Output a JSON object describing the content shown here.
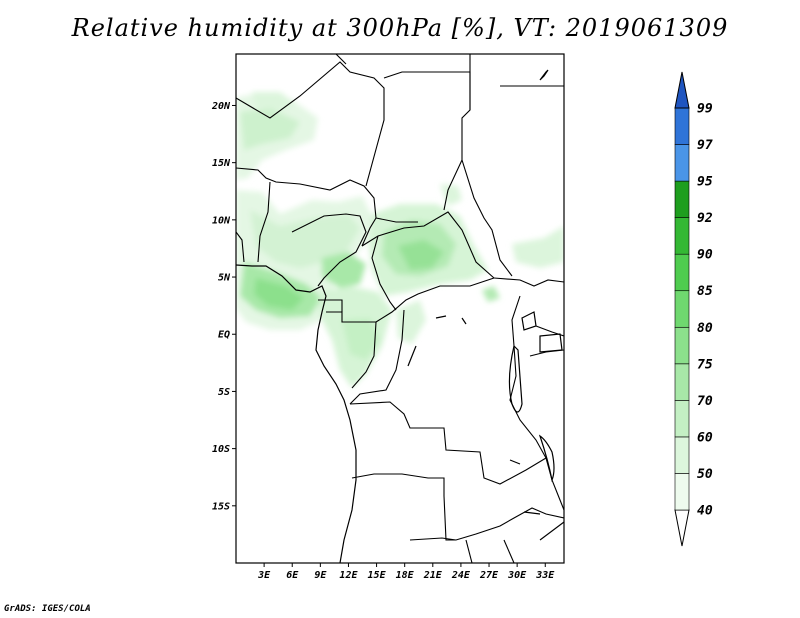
{
  "title": "Relative humidity at 300hPa [%], VT: 2019061309",
  "credit": "GrADS: IGES/COLA",
  "map": {
    "x_ticks": [
      "3E",
      "6E",
      "9E",
      "12E",
      "15E",
      "18E",
      "21E",
      "24E",
      "27E",
      "30E",
      "33E"
    ],
    "y_ticks": [
      "20N",
      "15N",
      "10N",
      "5N",
      "EQ",
      "5S",
      "10S",
      "15S"
    ],
    "lon_range": [
      0,
      35
    ],
    "lat_range": [
      -20,
      24.5
    ]
  },
  "colorbar": {
    "levels": [
      "40",
      "50",
      "60",
      "70",
      "75",
      "80",
      "85",
      "90",
      "92",
      "95",
      "97",
      "99"
    ],
    "colors": [
      "#eefbee",
      "#dcf6dc",
      "#c4f0c4",
      "#a8e8a8",
      "#8ce08c",
      "#6fd86f",
      "#4fcc4f",
      "#34b834",
      "#1e9e1e",
      "#4a95e8",
      "#2f74d8",
      "#1f55c0"
    ]
  },
  "chart_data": {
    "type": "heatmap",
    "title": "Relative humidity at 300hPa [%], VT: 2019061309",
    "units": "%",
    "contour_levels": [
      40,
      50,
      60,
      70,
      75,
      80,
      85,
      90,
      92,
      95,
      97,
      99
    ],
    "x_axis": [
      "3E",
      "6E",
      "9E",
      "12E",
      "15E",
      "18E",
      "21E",
      "24E",
      "27E",
      "30E",
      "33E"
    ],
    "y_axis": [
      "20N",
      "15N",
      "10N",
      "5N",
      "EQ",
      "5S",
      "10S",
      "15S"
    ]
  }
}
